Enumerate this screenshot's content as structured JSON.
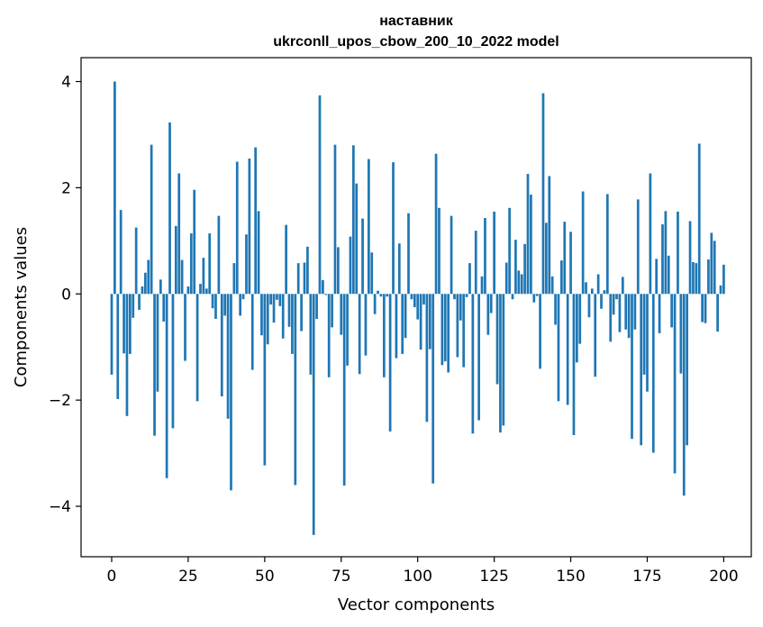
{
  "chart_data": {
    "type": "bar",
    "title": [
      "наставник",
      "ukrconll_upos_cbow_200_10_2022 model"
    ],
    "xlabel": "Vector components",
    "ylabel": "Components values",
    "xlim": [
      -10,
      209
    ],
    "ylim": [
      -4.95,
      4.45
    ],
    "xticks": [
      0,
      25,
      50,
      75,
      100,
      125,
      150,
      175,
      200
    ],
    "yticks": [
      -4,
      -2,
      0,
      2,
      4
    ],
    "grid": false,
    "legend": "none",
    "bar_color": "#1f77b4",
    "values": [
      -1.52,
      4.0,
      -1.98,
      1.58,
      -1.12,
      -2.3,
      -1.13,
      -0.45,
      1.25,
      -0.3,
      0.14,
      0.4,
      0.64,
      2.81,
      -2.67,
      -1.84,
      0.27,
      -0.52,
      -3.47,
      3.23,
      -2.53,
      1.28,
      2.27,
      0.64,
      -1.26,
      0.14,
      1.14,
      1.96,
      -2.02,
      0.19,
      0.68,
      0.1,
      1.14,
      -0.27,
      -0.47,
      1.47,
      -1.93,
      -0.41,
      -2.35,
      -3.7,
      0.58,
      2.49,
      -0.41,
      -0.1,
      1.12,
      2.55,
      -1.43,
      2.76,
      1.56,
      -0.78,
      -3.23,
      -0.95,
      -0.2,
      -0.54,
      -0.11,
      -0.23,
      -0.84,
      1.3,
      -0.62,
      -1.13,
      -3.6,
      0.58,
      -0.7,
      0.59,
      0.89,
      -1.52,
      -4.54,
      -0.47,
      3.74,
      0.26,
      -0.02,
      -1.57,
      -0.63,
      2.81,
      0.88,
      -0.77,
      -3.61,
      -1.35,
      1.08,
      2.8,
      2.08,
      -1.51,
      1.42,
      -1.16,
      2.54,
      0.78,
      -0.38,
      0.06,
      -0.05,
      -1.57,
      -0.05,
      -2.59,
      2.48,
      -1.21,
      0.95,
      -1.13,
      -0.83,
      1.52,
      -0.1,
      -0.25,
      -0.48,
      -1.05,
      -0.2,
      -2.41,
      -1.04,
      -3.57,
      2.64,
      1.62,
      -1.34,
      -1.27,
      -1.48,
      1.47,
      -0.1,
      -1.19,
      -0.5,
      -1.38,
      -0.06,
      0.58,
      -2.63,
      1.19,
      -2.38,
      0.33,
      1.43,
      -0.77,
      -0.36,
      1.55,
      -1.7,
      -2.61,
      -2.48,
      0.59,
      1.62,
      -0.1,
      1.02,
      0.44,
      0.37,
      0.94,
      2.26,
      1.87,
      -0.16,
      -0.04,
      -1.41,
      3.78,
      1.34,
      2.22,
      0.33,
      -0.58,
      -2.02,
      0.63,
      1.36,
      -2.09,
      1.17,
      -2.66,
      -1.29,
      -0.94,
      1.93,
      0.22,
      -0.44,
      0.1,
      -1.56,
      0.37,
      -0.28,
      0.07,
      1.88,
      -0.9,
      -0.39,
      -0.1,
      -0.72,
      0.32,
      -0.67,
      -0.83,
      -2.73,
      -0.67,
      1.78,
      -2.85,
      -1.52,
      -1.84,
      2.27,
      -2.99,
      0.66,
      -0.74,
      1.31,
      1.56,
      0.72,
      -0.63,
      -3.38,
      1.55,
      -1.5,
      -3.8,
      -2.85,
      1.37,
      0.6,
      0.58,
      2.83,
      -0.53,
      -0.55,
      0.65,
      1.15,
      1.0,
      -0.71,
      0.16,
      0.55
    ]
  }
}
